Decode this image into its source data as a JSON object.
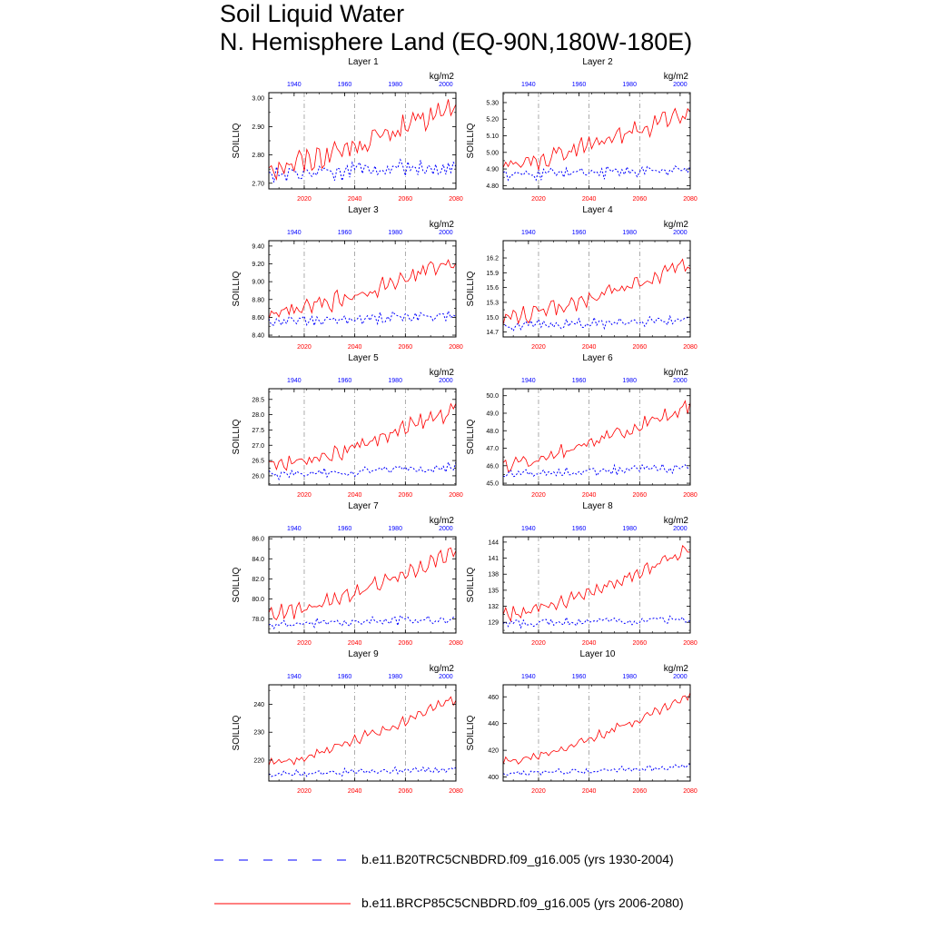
{
  "title": {
    "line1": "Soil Liquid Water",
    "line2": "N. Hemisphere Land (EQ-90N,180W-180E)"
  },
  "chart_data": {
    "type": "line",
    "ylabel": "SOILLIQ",
    "units": "kg/m2",
    "top_axis": {
      "range": [
        1930,
        2004
      ],
      "ticks": [
        "1940",
        "1960",
        "1980",
        "2000"
      ],
      "color": "#0000ff"
    },
    "bottom_axis": {
      "range": [
        2006,
        2080
      ],
      "ticks": [
        "2020",
        "2040",
        "2060",
        "2080"
      ],
      "color": "#ff0000"
    },
    "legend": [
      {
        "name": "b.e11.B20TRC5CNBDRD.f09_g16.005 (yrs 1930-2004)",
        "color": "#0000ff",
        "style": "dashed"
      },
      {
        "name": "b.e11.BRCP85C5CNBDRD.f09_g16.005 (yrs 2006-2080)",
        "color": "#ff0000",
        "style": "solid"
      }
    ],
    "panels": [
      {
        "title": "Layer 1",
        "ylim": [
          2.68,
          3.02
        ],
        "yticks": [
          "2.70",
          "2.80",
          "2.90",
          "3.00"
        ],
        "ytick_values": [
          2.7,
          2.8,
          2.9,
          3.0
        ],
        "red": {
          "start": 2.76,
          "end": 2.97,
          "amp": 0.035
        },
        "blue": {
          "start": 2.73,
          "end": 2.76,
          "amp": 0.022
        }
      },
      {
        "title": "Layer 2",
        "ylim": [
          4.78,
          5.36
        ],
        "yticks": [
          "4.80",
          "4.90",
          "5.00",
          "5.10",
          "5.20",
          "5.30"
        ],
        "ytick_values": [
          4.8,
          4.9,
          5.0,
          5.1,
          5.2,
          5.3
        ],
        "red": {
          "start": 4.93,
          "end": 5.25,
          "amp": 0.05
        },
        "blue": {
          "start": 4.86,
          "end": 4.9,
          "amp": 0.03
        }
      },
      {
        "title": "Layer 3",
        "ylim": [
          8.38,
          9.46
        ],
        "yticks": [
          "8.40",
          "8.60",
          "8.80",
          "9.00",
          "9.20",
          "9.40"
        ],
        "ytick_values": [
          8.4,
          8.6,
          8.8,
          9.0,
          9.2,
          9.4
        ],
        "red": {
          "start": 8.64,
          "end": 9.25,
          "amp": 0.08
        },
        "blue": {
          "start": 8.54,
          "end": 8.63,
          "amp": 0.05
        }
      },
      {
        "title": "Layer 4",
        "ylim": [
          14.6,
          16.55
        ],
        "yticks": [
          "14.7",
          "15.0",
          "15.3",
          "15.6",
          "15.9",
          "16.2"
        ],
        "ytick_values": [
          14.7,
          15.0,
          15.3,
          15.6,
          15.9,
          16.2
        ],
        "red": {
          "start": 14.98,
          "end": 16.1,
          "amp": 0.14
        },
        "blue": {
          "start": 14.82,
          "end": 14.95,
          "amp": 0.08
        }
      },
      {
        "title": "Layer 5",
        "ylim": [
          25.7,
          28.85
        ],
        "yticks": [
          "26.0",
          "26.5",
          "27.0",
          "27.5",
          "28.0",
          "28.5"
        ],
        "ytick_values": [
          26.0,
          26.5,
          27.0,
          27.5,
          28.0,
          28.5
        ],
        "red": {
          "start": 26.3,
          "end": 28.2,
          "amp": 0.22
        },
        "blue": {
          "start": 26.0,
          "end": 26.3,
          "amp": 0.13
        }
      },
      {
        "title": "Layer 6",
        "ylim": [
          44.9,
          50.4
        ],
        "yticks": [
          "45.0",
          "46.0",
          "47.0",
          "48.0",
          "49.0",
          "50.0"
        ],
        "ytick_values": [
          45.0,
          46.0,
          47.0,
          48.0,
          49.0,
          50.0
        ],
        "red": {
          "start": 46.0,
          "end": 49.5,
          "amp": 0.35
        },
        "blue": {
          "start": 45.5,
          "end": 45.9,
          "amp": 0.2
        }
      },
      {
        "title": "Layer 7",
        "ylim": [
          76.6,
          86.2
        ],
        "yticks": [
          "78.0",
          "80.0",
          "82.0",
          "84.0",
          "86.0"
        ],
        "ytick_values": [
          78.0,
          80.0,
          82.0,
          84.0,
          86.0
        ],
        "red": {
          "start": 78.5,
          "end": 84.8,
          "amp": 0.6
        },
        "blue": {
          "start": 77.5,
          "end": 78.0,
          "amp": 0.35
        }
      },
      {
        "title": "Layer 8",
        "ylim": [
          127.0,
          145.0
        ],
        "yticks": [
          "129",
          "132",
          "135",
          "138",
          "141",
          "144"
        ],
        "ytick_values": [
          129,
          132,
          135,
          138,
          141,
          144
        ],
        "red": {
          "start": 130.5,
          "end": 142.5,
          "amp": 1.0
        },
        "blue": {
          "start": 128.8,
          "end": 129.6,
          "amp": 0.6
        }
      },
      {
        "title": "Layer 9",
        "ylim": [
          212.5,
          247.0
        ],
        "yticks": [
          "220",
          "230",
          "240"
        ],
        "ytick_values": [
          220,
          230,
          240
        ],
        "red": {
          "start": 218.5,
          "end": 242.5,
          "amp": 1.5
        },
        "blue": {
          "start": 215.0,
          "end": 217.0,
          "amp": 1.0
        }
      },
      {
        "title": "Layer 10",
        "ylim": [
          397.0,
          469.0
        ],
        "yticks": [
          "400",
          "420",
          "440",
          "460"
        ],
        "ytick_values": [
          400,
          420,
          440,
          460
        ],
        "red": {
          "start": 411.0,
          "end": 461.0,
          "amp": 2.5
        },
        "blue": {
          "start": 402.0,
          "end": 408.0,
          "amp": 1.6
        }
      }
    ]
  }
}
